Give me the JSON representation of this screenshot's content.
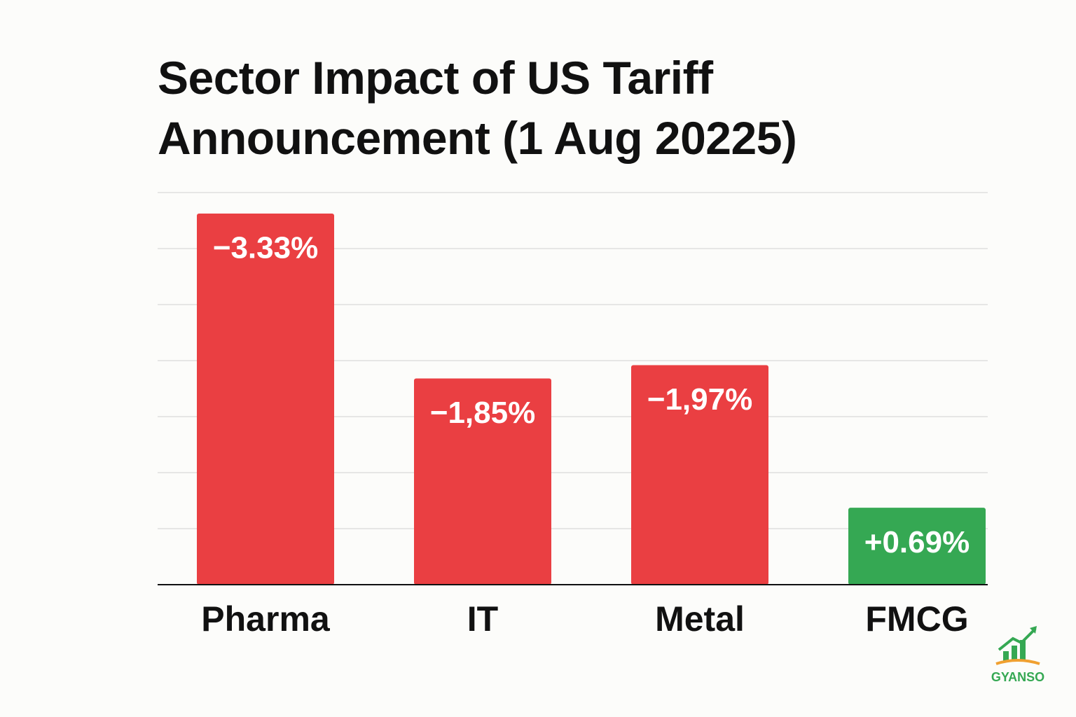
{
  "chart_data": {
    "type": "bar",
    "title": "Sector Impact of US Tariff Announcement (1 Aug 20225)",
    "categories": [
      "Pharma",
      "IT",
      "Metal",
      "FMCG"
    ],
    "values": [
      -3.33,
      -1.85,
      -1.97,
      0.69
    ],
    "value_labels": [
      "−3.33%",
      "−1,85%",
      "−1,97%",
      "+0.69%"
    ],
    "colors": [
      "#ea3f42",
      "#ea3f42",
      "#ea3f42",
      "#35a853"
    ],
    "grid": true,
    "watermark": "GYANSO"
  }
}
